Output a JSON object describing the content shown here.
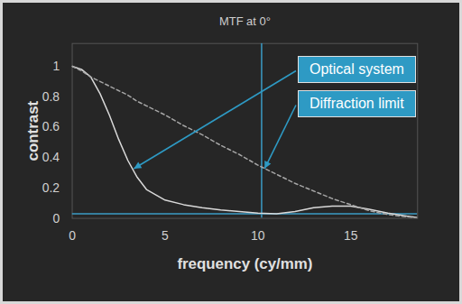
{
  "chart_data": {
    "type": "line",
    "title": "MTF at 0°",
    "xlabel": "frequency (cy/mm)",
    "ylabel": "contrast",
    "x": [
      0,
      0.5,
      1,
      1.5,
      2,
      2.5,
      3,
      3.5,
      4,
      5,
      6,
      7,
      8,
      9,
      10,
      11,
      12,
      13,
      14,
      15,
      16,
      17,
      18,
      18.6
    ],
    "series": [
      {
        "name": "Optical system",
        "color": "#d9d9d9",
        "line_style": "solid",
        "values": [
          1.0,
          0.98,
          0.93,
          0.82,
          0.68,
          0.52,
          0.38,
          0.27,
          0.19,
          0.12,
          0.09,
          0.07,
          0.055,
          0.045,
          0.035,
          0.03,
          0.045,
          0.07,
          0.08,
          0.08,
          0.06,
          0.035,
          0.015,
          0.005
        ]
      },
      {
        "name": "Diffraction limit",
        "color": "#a6a6a6",
        "line_style": "dashed",
        "values": [
          1.0,
          0.97,
          0.93,
          0.9,
          0.87,
          0.84,
          0.81,
          0.77,
          0.74,
          0.68,
          0.61,
          0.55,
          0.48,
          0.42,
          0.35,
          0.29,
          0.23,
          0.18,
          0.13,
          0.09,
          0.05,
          0.025,
          0.01,
          0.0
        ]
      }
    ],
    "reference_lines": {
      "x": [
        10.2
      ],
      "y": [
        0.03
      ],
      "color": "#3b9cc6"
    },
    "annotations": [
      {
        "text": "Optical system",
        "x": 3.3,
        "y": 0.33,
        "color": "#2e9ac4"
      },
      {
        "text": "Diffraction limit",
        "x": 10.3,
        "y": 0.33,
        "color": "#2e9ac4"
      }
    ],
    "xlim": [
      0,
      18.6
    ],
    "ylim": [
      0,
      1.15
    ],
    "xticks": [
      0,
      5,
      10,
      15
    ],
    "yticks": [
      0,
      0.2,
      0.4,
      0.6,
      0.8,
      1
    ],
    "grid": false
  }
}
